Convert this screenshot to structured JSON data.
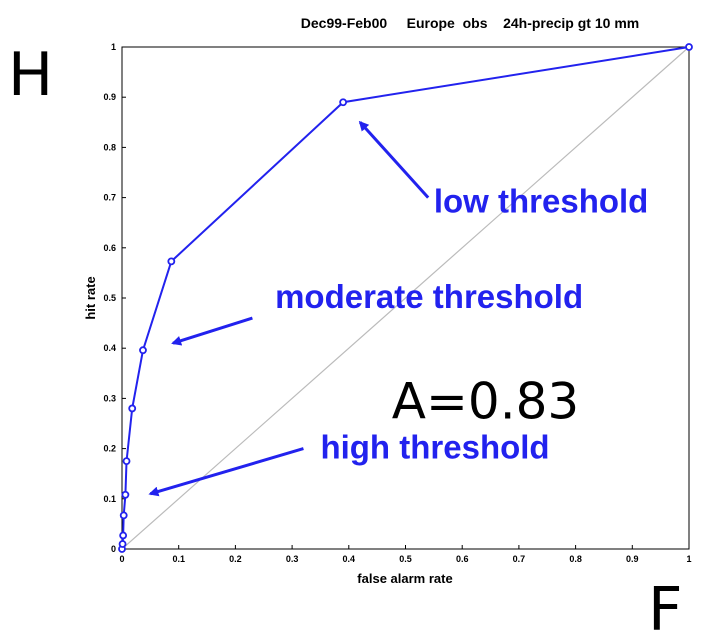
{
  "chart_data": {
    "type": "line",
    "title": "Dec99-Feb00     Europe  obs    24h-precip gt 10 mm",
    "xlabel": "false alarm rate",
    "ylabel": "hit rate",
    "corner_labels": {
      "y": "H",
      "x": "F"
    },
    "xlim": [
      0,
      1
    ],
    "ylim": [
      0,
      1
    ],
    "xticks": [
      "0",
      "0.1",
      "0.2",
      "0.3",
      "0.4",
      "0.5",
      "0.6",
      "0.7",
      "0.8",
      "0.9",
      "1"
    ],
    "yticks": [
      "0",
      "0.1",
      "0.2",
      "0.3",
      "0.4",
      "0.5",
      "0.6",
      "0.7",
      "0.8",
      "0.9",
      "1"
    ],
    "grid": false,
    "series": [
      {
        "color": "#2222ee",
        "points": [
          [
            0,
            0
          ],
          [
            0.001,
            0.01
          ],
          [
            0.002,
            0.027
          ],
          [
            0.003,
            0.067
          ],
          [
            0.006,
            0.108
          ],
          [
            0.008,
            0.175
          ],
          [
            0.018,
            0.28
          ],
          [
            0.037,
            0.396
          ],
          [
            0.087,
            0.573
          ],
          [
            0.39,
            0.89
          ],
          [
            1,
            1
          ]
        ]
      }
    ],
    "reference_line": {
      "from": [
        0,
        0
      ],
      "to": [
        1,
        1
      ],
      "color": "#bbbbbb"
    },
    "annotations": [
      {
        "text": "low threshold",
        "text_at": [
          0.55,
          0.67
        ],
        "arrow_from": [
          0.54,
          0.7
        ],
        "arrow_to": [
          0.42,
          0.85
        ]
      },
      {
        "text": "moderate threshold",
        "text_at": [
          0.27,
          0.48
        ],
        "arrow_from": [
          0.23,
          0.46
        ],
        "arrow_to": [
          0.09,
          0.41
        ]
      },
      {
        "text": "high threshold",
        "text_at": [
          0.35,
          0.18
        ],
        "arrow_from": [
          0.32,
          0.2
        ],
        "arrow_to": [
          0.05,
          0.11
        ]
      }
    ],
    "area_label": "A=0.83",
    "area_label_at": [
      0.5,
      0.3
    ]
  }
}
